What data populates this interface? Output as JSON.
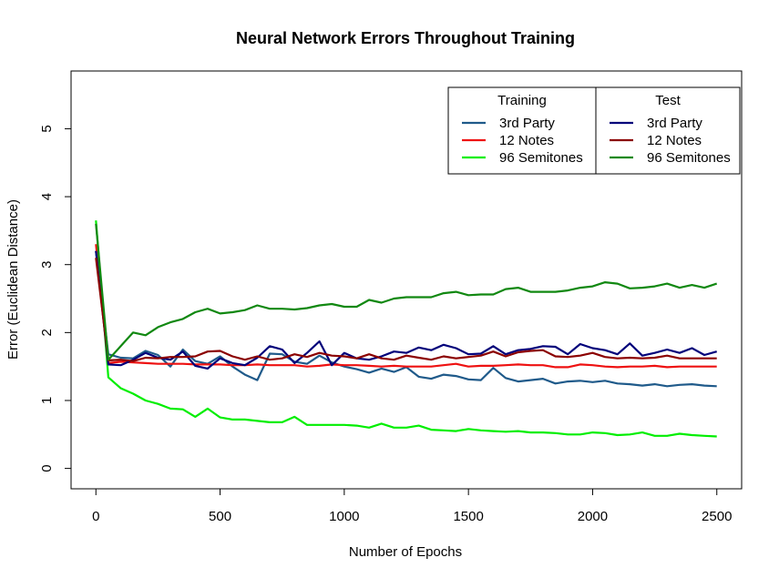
{
  "chart_data": {
    "type": "line",
    "title": "Neural Network Errors Throughout Training",
    "xlabel": "Number of Epochs",
    "ylabel": "Error (Euclidean Distance)",
    "xlim": [
      -100,
      2600
    ],
    "ylim": [
      -0.3,
      5.85
    ],
    "x_ticks": [
      0,
      500,
      1000,
      1500,
      2000,
      2500
    ],
    "y_ticks": [
      0,
      1,
      2,
      3,
      4,
      5
    ],
    "grid": false,
    "legend_placement": "top-right",
    "legend_groups": [
      {
        "title": "Training",
        "series": [
          0,
          1,
          2
        ]
      },
      {
        "title": "Test",
        "series": [
          3,
          4,
          5
        ]
      }
    ],
    "x": [
      0,
      50,
      100,
      150,
      200,
      250,
      300,
      350,
      400,
      450,
      500,
      550,
      600,
      650,
      700,
      750,
      800,
      850,
      900,
      950,
      1000,
      1050,
      1100,
      1150,
      1200,
      1250,
      1300,
      1350,
      1400,
      1450,
      1500,
      1550,
      1600,
      1650,
      1700,
      1750,
      1800,
      1850,
      1900,
      1950,
      2000,
      2050,
      2100,
      2150,
      2200,
      2250,
      2300,
      2350,
      2400,
      2450,
      2500
    ],
    "series": [
      {
        "name": "3rd Party",
        "group": "Training",
        "color": "#1f5a8a",
        "values": [
          3.2,
          1.68,
          1.63,
          1.62,
          1.73,
          1.67,
          1.5,
          1.75,
          1.58,
          1.54,
          1.65,
          1.5,
          1.38,
          1.3,
          1.69,
          1.68,
          1.57,
          1.54,
          1.66,
          1.56,
          1.5,
          1.46,
          1.41,
          1.47,
          1.42,
          1.49,
          1.35,
          1.32,
          1.38,
          1.36,
          1.31,
          1.3,
          1.48,
          1.33,
          1.28,
          1.3,
          1.32,
          1.25,
          1.28,
          1.29,
          1.27,
          1.29,
          1.25,
          1.24,
          1.22,
          1.24,
          1.21,
          1.23,
          1.24,
          1.22,
          1.21
        ]
      },
      {
        "name": "12 Notes",
        "group": "Training",
        "color": "#ee1111",
        "values": [
          3.3,
          1.55,
          1.57,
          1.56,
          1.55,
          1.54,
          1.54,
          1.54,
          1.53,
          1.53,
          1.53,
          1.52,
          1.52,
          1.53,
          1.52,
          1.52,
          1.52,
          1.5,
          1.51,
          1.53,
          1.52,
          1.52,
          1.51,
          1.5,
          1.51,
          1.5,
          1.5,
          1.5,
          1.52,
          1.54,
          1.5,
          1.51,
          1.51,
          1.52,
          1.53,
          1.52,
          1.52,
          1.49,
          1.49,
          1.53,
          1.52,
          1.5,
          1.49,
          1.5,
          1.5,
          1.51,
          1.49,
          1.5,
          1.5,
          1.5,
          1.5
        ]
      },
      {
        "name": "96 Semitones",
        "group": "Training",
        "color": "#00ee00",
        "values": [
          3.65,
          1.34,
          1.18,
          1.1,
          1.0,
          0.95,
          0.88,
          0.87,
          0.76,
          0.88,
          0.75,
          0.72,
          0.72,
          0.7,
          0.68,
          0.68,
          0.76,
          0.64,
          0.64,
          0.64,
          0.64,
          0.63,
          0.6,
          0.66,
          0.6,
          0.6,
          0.63,
          0.57,
          0.56,
          0.55,
          0.58,
          0.56,
          0.55,
          0.54,
          0.55,
          0.53,
          0.53,
          0.52,
          0.5,
          0.5,
          0.53,
          0.52,
          0.49,
          0.5,
          0.53,
          0.48,
          0.48,
          0.51,
          0.49,
          0.48,
          0.47
        ]
      },
      {
        "name": "3rd Party",
        "group": "Test",
        "color": "#00007a",
        "values": [
          3.2,
          1.53,
          1.52,
          1.6,
          1.7,
          1.63,
          1.6,
          1.72,
          1.51,
          1.47,
          1.62,
          1.55,
          1.52,
          1.63,
          1.8,
          1.75,
          1.55,
          1.7,
          1.87,
          1.52,
          1.7,
          1.62,
          1.6,
          1.65,
          1.72,
          1.7,
          1.78,
          1.74,
          1.82,
          1.77,
          1.68,
          1.69,
          1.8,
          1.68,
          1.74,
          1.76,
          1.8,
          1.79,
          1.68,
          1.83,
          1.77,
          1.74,
          1.68,
          1.84,
          1.66,
          1.7,
          1.75,
          1.7,
          1.77,
          1.67,
          1.72
        ]
      },
      {
        "name": "12 Notes",
        "group": "Test",
        "color": "#8b0000",
        "values": [
          3.1,
          1.59,
          1.6,
          1.58,
          1.63,
          1.62,
          1.64,
          1.64,
          1.65,
          1.72,
          1.73,
          1.65,
          1.6,
          1.65,
          1.6,
          1.62,
          1.68,
          1.64,
          1.7,
          1.66,
          1.65,
          1.62,
          1.68,
          1.62,
          1.6,
          1.66,
          1.63,
          1.6,
          1.65,
          1.62,
          1.64,
          1.66,
          1.72,
          1.65,
          1.71,
          1.73,
          1.74,
          1.65,
          1.64,
          1.66,
          1.7,
          1.64,
          1.62,
          1.63,
          1.62,
          1.63,
          1.66,
          1.62,
          1.62,
          1.62,
          1.62
        ]
      },
      {
        "name": "96 Semitones",
        "group": "Test",
        "color": "#118811",
        "values": [
          3.6,
          1.6,
          1.8,
          2.0,
          1.96,
          2.08,
          2.15,
          2.2,
          2.3,
          2.35,
          2.28,
          2.3,
          2.33,
          2.4,
          2.35,
          2.35,
          2.34,
          2.36,
          2.4,
          2.42,
          2.38,
          2.38,
          2.48,
          2.44,
          2.5,
          2.52,
          2.52,
          2.52,
          2.58,
          2.6,
          2.55,
          2.56,
          2.56,
          2.64,
          2.66,
          2.6,
          2.6,
          2.6,
          2.62,
          2.66,
          2.68,
          2.74,
          2.72,
          2.65,
          2.66,
          2.68,
          2.72,
          2.66,
          2.7,
          2.66,
          2.72
        ]
      }
    ]
  }
}
